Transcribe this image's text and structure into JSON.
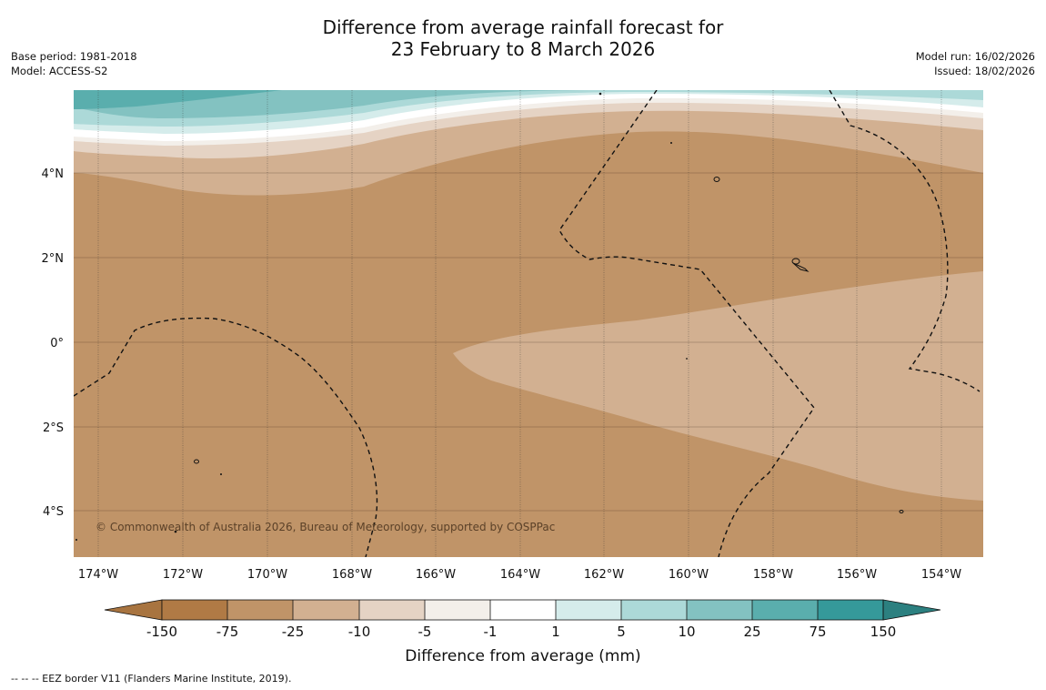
{
  "title": {
    "line1": "Difference from average rainfall forecast for",
    "line2": "23 February to 8 March 2026"
  },
  "meta_left": {
    "base_period": "Base period: 1981-2018",
    "model": "Model: ACCESS-S2"
  },
  "meta_right": {
    "model_run": "Model run: 16/02/2026",
    "issued": "Issued: 18/02/2026"
  },
  "map": {
    "lon_range": [
      -174.6,
      -153.0
    ],
    "lat_range": [
      -5.1,
      5.9
    ],
    "lon_labels": [
      "174°W",
      "172°W",
      "170°W",
      "168°W",
      "166°W",
      "164°W",
      "162°W",
      "160°W",
      "158°W",
      "156°W",
      "154°W"
    ],
    "lat_labels": [
      "4°N",
      "2°N",
      "0°",
      "2°S",
      "4°S"
    ],
    "copyright": "© Commonwealth of Australia 2026, Bureau of Meteorology, supported by COSPPac"
  },
  "legend": {
    "title": "Difference from average (mm)",
    "ticks": [
      "-150",
      "-75",
      "-25",
      "-10",
      "-5",
      "-1",
      "1",
      "5",
      "10",
      "25",
      "75",
      "150"
    ],
    "colors": [
      "#a87440",
      "#b07a45",
      "#c09468",
      "#d2b091",
      "#e5d3c4",
      "#f3efea",
      "#ffffff",
      "#d5eceb",
      "#acd9d8",
      "#83c2c1",
      "#5aaead",
      "#35999a",
      "#2c8080"
    ]
  },
  "footnote": "--  --  -- EEZ border V11 (Flanders Marine Institute, 2019)."
}
